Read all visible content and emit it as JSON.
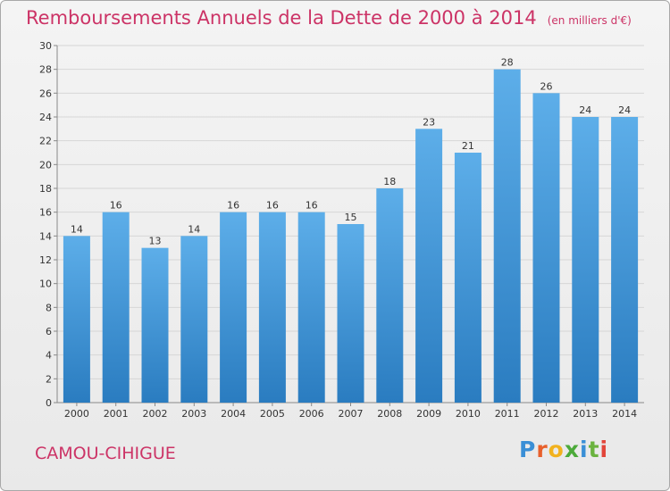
{
  "header": {
    "title": "Remboursements Annuels de la Dette de 2000 à 2014",
    "unit": "(en milliers d'€)"
  },
  "footer": {
    "commune": "CAMOU-CIHIGUE",
    "logo_text": "Proxiti"
  },
  "colors": {
    "accent": "#cc3366",
    "bar_top": "#5daee9",
    "bar_bottom": "#2a7cc0"
  },
  "chart_data": {
    "type": "bar",
    "title": "Remboursements Annuels de la Dette de 2000 à 2014",
    "subtitle": "(en milliers d'€)",
    "categories": [
      "2000",
      "2001",
      "2002",
      "2003",
      "2004",
      "2005",
      "2006",
      "2007",
      "2008",
      "2009",
      "2010",
      "2011",
      "2012",
      "2013",
      "2014"
    ],
    "values": [
      14,
      16,
      13,
      14,
      16,
      16,
      16,
      15,
      18,
      23,
      21,
      28,
      26,
      24,
      24
    ],
    "ylim": [
      0,
      30
    ],
    "yticks": [
      0,
      2,
      4,
      6,
      8,
      10,
      12,
      14,
      16,
      18,
      20,
      22,
      24,
      26,
      28,
      30
    ],
    "grid": true
  }
}
